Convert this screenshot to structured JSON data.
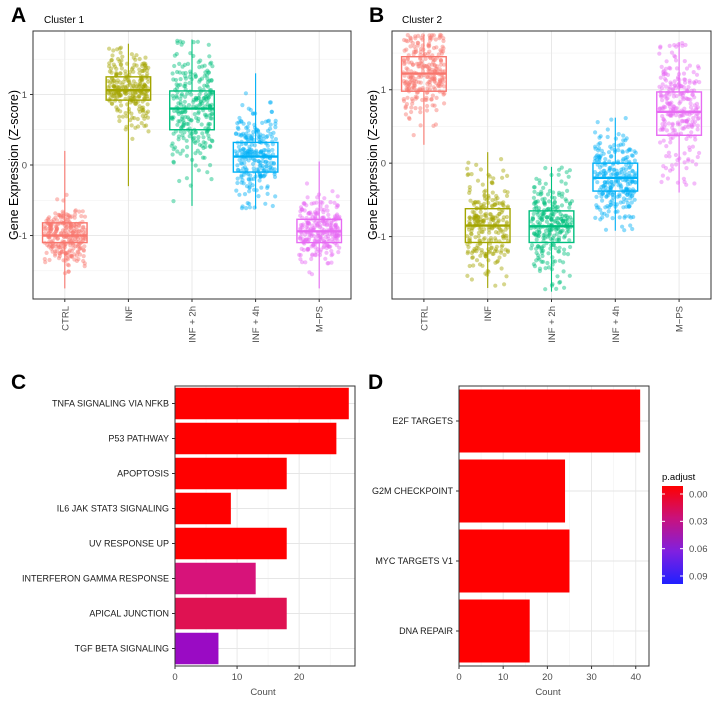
{
  "chart_data": [
    {
      "panel": "A",
      "type": "box",
      "title": "Cluster 1",
      "xlabel": "",
      "ylabel": "Gene Expression (Z-score)",
      "ylim": [
        -1.9,
        1.9
      ],
      "yticks": [
        -1,
        0,
        1
      ],
      "grid": true,
      "categories": [
        "CTRL",
        "INF",
        "INF + 2h",
        "INF + 4h",
        "M-PS"
      ],
      "colors": [
        "#F8766D",
        "#A3A500",
        "#00BF7D",
        "#00B0F6",
        "#E76BF3"
      ],
      "boxes": [
        {
          "q1": -1.1,
          "median": -1.0,
          "q3": -0.82,
          "min": -1.75,
          "max": 0.2
        },
        {
          "q1": 0.92,
          "median": 1.06,
          "q3": 1.25,
          "min": -0.3,
          "max": 1.72
        },
        {
          "q1": 0.5,
          "median": 0.8,
          "q3": 1.05,
          "min": -0.58,
          "max": 1.78
        },
        {
          "q1": -0.1,
          "median": 0.12,
          "q3": 0.32,
          "min": -0.62,
          "max": 1.3
        },
        {
          "q1": -1.1,
          "median": -0.94,
          "q3": -0.77,
          "min": -1.75,
          "max": 0.05
        }
      ]
    },
    {
      "panel": "B",
      "type": "box",
      "title": "Cluster 2",
      "xlabel": "",
      "ylabel": "Gene Expression (Z-score)",
      "ylim": [
        -1.85,
        1.8
      ],
      "yticks": [
        -1,
        0,
        1
      ],
      "grid": true,
      "categories": [
        "CTRL",
        "INF",
        "INF + 2h",
        "INF + 4h",
        "M-PS"
      ],
      "colors": [
        "#F8766D",
        "#A3A500",
        "#00BF7D",
        "#00B0F6",
        "#E76BF3"
      ],
      "boxes": [
        {
          "q1": 0.98,
          "median": 1.22,
          "q3": 1.45,
          "min": 0.25,
          "max": 1.75
        },
        {
          "q1": -1.08,
          "median": -0.85,
          "q3": -0.62,
          "min": -1.7,
          "max": 0.15
        },
        {
          "q1": -1.08,
          "median": -0.86,
          "q3": -0.65,
          "min": -1.75,
          "max": -0.05
        },
        {
          "q1": -0.38,
          "median": -0.2,
          "q3": 0.0,
          "min": -0.92,
          "max": 0.62
        },
        {
          "q1": 0.38,
          "median": 0.7,
          "q3": 0.97,
          "min": -0.4,
          "max": 1.65
        }
      ]
    },
    {
      "panel": "C",
      "type": "bar",
      "orientation": "horizontal",
      "xlabel": "Count",
      "ylabel": "",
      "xlim": [
        0,
        29
      ],
      "xticks": [
        0,
        10,
        20
      ],
      "categories": [
        "TNFA SIGNALING VIA NFKB",
        "P53 PATHWAY",
        "APOPTOSIS",
        "IL6 JAK STAT3 SIGNALING",
        "UV RESPONSE UP",
        "INTERFERON GAMMA RESPONSE",
        "APICAL JUNCTION",
        "TGF BETA SIGNALING"
      ],
      "values": [
        28,
        26,
        18,
        9,
        18,
        13,
        18,
        7
      ],
      "p_adjust": [
        0.0,
        0.0,
        0.0,
        0.0,
        0.0,
        0.045,
        0.03,
        0.075
      ],
      "colors": [
        "#FF0000",
        "#FF0000",
        "#FF0000",
        "#FF0000",
        "#FF0000",
        "#D7137A",
        "#DF1252",
        "#9A0BC4"
      ]
    },
    {
      "panel": "D",
      "type": "bar",
      "orientation": "horizontal",
      "xlabel": "Count",
      "ylabel": "",
      "xlim": [
        0,
        43
      ],
      "xticks": [
        0,
        10,
        20,
        30,
        40
      ],
      "categories": [
        "E2F TARGETS",
        "G2M CHECKPOINT",
        "MYC TARGETS V1",
        "DNA REPAIR"
      ],
      "values": [
        41,
        24,
        25,
        16
      ],
      "p_adjust": [
        0.0,
        0.0,
        0.0,
        0.0
      ],
      "colors": [
        "#FF0000",
        "#FF0000",
        "#FF0000",
        "#FF0000"
      ],
      "legend": {
        "title": "p.adjust",
        "labels": [
          "0.00",
          "0.03",
          "0.06",
          "0.09"
        ],
        "gradient_colors": [
          "#FF0000",
          "#C8127E",
          "#8020E0",
          "#2020FF"
        ]
      }
    }
  ]
}
